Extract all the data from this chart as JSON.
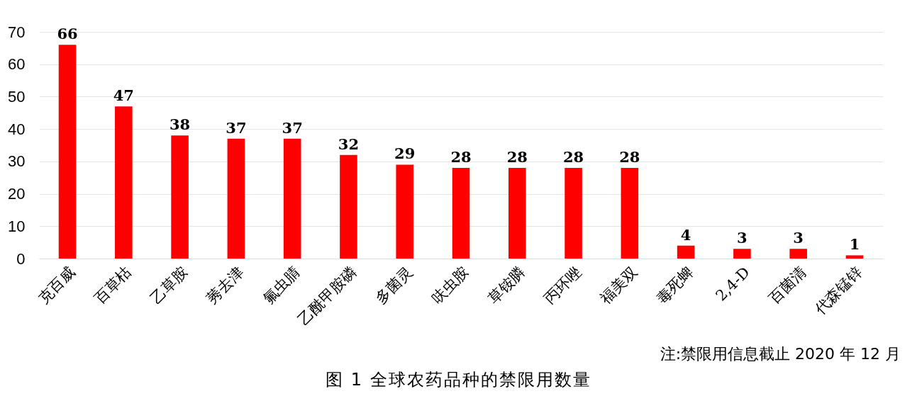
{
  "chart_data": {
    "type": "bar",
    "title": "图 1 全球农药品种的禁限用数量",
    "categories": [
      "克百威",
      "百草枯",
      "乙草胺",
      "莠去津",
      "氟虫腈",
      "乙酰甲胺磷",
      "多菌灵",
      "呋虫胺",
      "草铵膦",
      "丙环唑",
      "福美双",
      "毒死蜱",
      "2,4-D",
      "百菌清",
      "代森锰锌"
    ],
    "values": [
      66,
      47,
      38,
      37,
      37,
      32,
      29,
      28,
      28,
      28,
      28,
      4,
      3,
      3,
      1
    ],
    "color": "#ff0000",
    "ylim": [
      0,
      70
    ],
    "yticks": [
      0,
      10,
      20,
      30,
      40,
      50,
      60,
      70
    ],
    "grid": "y",
    "data_labels": true,
    "annotations": [
      "注:禁限用信息截止 2020 年 12 月"
    ]
  }
}
